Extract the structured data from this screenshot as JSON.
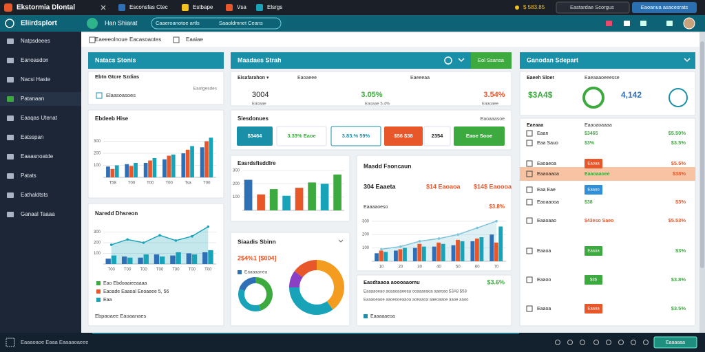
{
  "browser": {
    "tabs": [
      "Ekstormia Dlontal",
      "Esconsfas Ctec",
      "Estbape",
      "Vsa",
      "Elsrgs"
    ],
    "price": "$ 583.85",
    "search": "Eastardae Scorgus",
    "button": "Eaoanua asacesrats"
  },
  "app": {
    "brand": "Eliirdsplort",
    "name": "Han Shiarat",
    "search": "Caaeroanotoe artls",
    "search_filter": "Saaoldmnet Ceans"
  },
  "sidebar": [
    "Natpsdeees",
    "Eanoasdon",
    "Nacsi Haste",
    "Patanaan",
    "Eaaqas Utenat",
    "Eatsspan",
    "Eaaasnoatde",
    "Patats",
    "Eathaldtsts",
    "Ganaal Taaaa"
  ],
  "toolbar": [
    "Eaeeeolnoue",
    "Eacasoaotes",
    "Eaaiae"
  ],
  "left_panel": {
    "header": "Natacs Stonis",
    "card_title": "Ebtn Gtcre Szdias",
    "card_link": "Eaotgesdes",
    "card_item": "Elaasoasoes",
    "legend": [
      "Eao Ebdoaaieeaaaa",
      "Eaoade Eaaoal  Eeoaeee 5, 56",
      "Eaa"
    ],
    "footer": "Ebpaoaee Eaoaanaes"
  },
  "center_panel": {
    "header": "Maadaes Strah",
    "button": "Eol Ssansa",
    "stat_labels": [
      "Eisafarahon ▾",
      "Eaoaeee",
      "Eaeeeaa"
    ],
    "stat_values": [
      "3004",
      "3.05%",
      "3.54%"
    ],
    "stat_subs": [
      "Eaoaae",
      "Eaoaae 5.4%",
      "Eaaoaee"
    ],
    "section_title": "Siesdonues",
    "section_action": "Eaoaaasoe",
    "buttons": [
      "$3464",
      "3.33%  Eaoe",
      "3.83.%  59%",
      "$56  $38",
      "2354",
      "Eaoe  Sooe"
    ],
    "forecast_stats": [
      "304  Eaaeta",
      "$14  Eaoaoa",
      "$14$  Eaoooa"
    ],
    "forecast_sub": [
      "Eaaaaoeso",
      "$3.8%"
    ],
    "donut_subtitle": "2$4%1 [$004]",
    "donut_legend": "Eaaaaanea",
    "summary_title": "Easdtaaoa aoooaaomu",
    "summary_value": "$3.6%",
    "summary_lines": [
      "Eaaaaoeao aoaaoaaeeaa ooaaaeaoa aaeoao $3A8 $58",
      "Eaaaoeaoe aaoeooeaaoa aoeaaoa aaeoaaoe aaoe aaoo"
    ],
    "summary_legend": "Eaaaaaeoa"
  },
  "right_panel": {
    "header": "Ganodan Sdepart",
    "stat_labels": [
      "Eaeeh Sloer",
      "Eaeaaaoeeesse"
    ],
    "stat_values": [
      "$3A4$",
      "4,142"
    ],
    "list_header": [
      "Eaeaaa",
      "Eaaoaoaaaa"
    ],
    "rows": [
      {
        "label": "Eaan",
        "mid": "$3465",
        "right": "$5.50%"
      },
      {
        "label": "Eaa Sauo",
        "mid": "$3%",
        "right": "$3.5%"
      },
      {
        "label": "Eaoaeoa",
        "mid": "Eaoaa",
        "right": "$5.5%"
      },
      {
        "label": "Eaaoaaoa",
        "mid": "Eaaoaaoee",
        "right": "$38%"
      },
      {
        "label": "Eaa Eae",
        "mid": "Eaaoo"
      },
      {
        "label": "Eaoaaooa",
        "mid": "$38",
        "right": "$3%"
      },
      {
        "label": "Eaaoaao",
        "mid": "$43eso Saeo",
        "right": "$5.53%"
      },
      {
        "label": "Eaaoa",
        "mid": "Eaaoa",
        "right": "$3%"
      },
      {
        "label": "Eaaoo",
        "mid": "$3$",
        "right": "$3.8%"
      },
      {
        "label": "Eaaoa",
        "mid": "Eaaoa",
        "right": "$3.5%"
      }
    ]
  },
  "taskbar": {
    "text": "Eaaaoaoe Eaaa Eaaaaoaeee",
    "button": "Eaaaaaa"
  },
  "chart_data": [
    {
      "type": "bar",
      "title": "Ebdeeb Hise",
      "categories": [
        "T58",
        "T00",
        "T00",
        "T00",
        "Tsa",
        "T00"
      ],
      "ylim": [
        0,
        400
      ],
      "yticks": [
        100,
        200,
        300
      ],
      "series": [
        {
          "color": "#2f6fb5",
          "values": [
            90,
            110,
            120,
            150,
            200,
            250
          ]
        },
        {
          "color": "#e8572a",
          "values": [
            70,
            95,
            140,
            180,
            230,
            300
          ]
        },
        {
          "color": "#19a3b8",
          "values": [
            100,
            120,
            160,
            190,
            260,
            330
          ]
        }
      ]
    },
    {
      "type": "line",
      "title": "Naredd Dhsreon",
      "categories": [
        "T00",
        "T00",
        "T00",
        "T00",
        "T00",
        "T00",
        "T00"
      ],
      "ylim": [
        0,
        400
      ],
      "yticks": [
        100,
        200,
        300
      ],
      "line": {
        "color": "#19a3b8",
        "values": [
          180,
          230,
          200,
          270,
          220,
          260,
          350
        ]
      },
      "series": [
        {
          "color": "#2f6fb5",
          "values": [
            50,
            70,
            60,
            90,
            80,
            100,
            110
          ]
        },
        {
          "color": "#19a3b8",
          "values": [
            80,
            60,
            90,
            70,
            110,
            90,
            130
          ]
        }
      ]
    },
    {
      "type": "bar",
      "title": "Easrdsfisddlre",
      "ylim": [
        0,
        300
      ],
      "yticks": [
        100,
        200,
        300
      ],
      "series": [
        {
          "colors": [
            "#2f6fb5",
            "#e8572a",
            "#3daa3f",
            "#19a3b8",
            "#e8572a",
            "#3daa3f",
            "#19a3b8",
            "#3daa3f"
          ],
          "values": [
            230,
            120,
            160,
            110,
            170,
            210,
            200,
            270
          ]
        }
      ]
    },
    {
      "type": "line",
      "title": "Masdd Fsoncaun",
      "categories": [
        "10",
        "20",
        "30",
        "40",
        "50",
        "60",
        "70"
      ],
      "ylim": [
        0,
        350
      ],
      "yticks": [
        100,
        200,
        300
      ],
      "line": {
        "color": "#7fc4d8",
        "values": [
          90,
          110,
          150,
          170,
          200,
          250,
          300
        ]
      },
      "series": [
        {
          "color": "#2f6fb5",
          "values": [
            60,
            80,
            100,
            110,
            120,
            150,
            200
          ]
        },
        {
          "color": "#e8572a",
          "values": [
            80,
            90,
            130,
            140,
            160,
            170,
            140
          ]
        },
        {
          "color": "#19a3b8",
          "values": [
            70,
            100,
            110,
            130,
            150,
            180,
            260
          ]
        }
      ]
    },
    {
      "type": "pie",
      "title": "Siaadis Sbinn",
      "values": [
        45,
        35,
        20
      ],
      "colors": [
        "#3daa3f",
        "#19a3b8",
        "#2f6fb5"
      ]
    },
    {
      "type": "pie",
      "values": [
        40,
        35,
        10,
        15
      ],
      "colors": [
        "#f39c1f",
        "#19a3b8",
        "#8a3fc4",
        "#e8572a"
      ]
    }
  ]
}
